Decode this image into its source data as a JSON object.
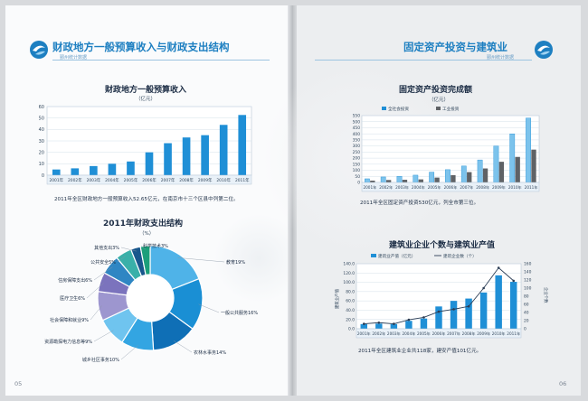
{
  "left": {
    "title": "财政地方一般预算收入与财政支出结构",
    "subtitle": "鄞州统计数据",
    "page_number": "05",
    "budget_chart": {
      "title": "财政地方一般预算收入",
      "unit": "（亿元）",
      "caption": "2011年全区财政地方一般预算收入52.65亿元，在南京市十三个区县中列第二位。"
    },
    "expenditure_chart": {
      "title": "2011年财政支出结构",
      "unit": "（%）"
    }
  },
  "right": {
    "title": "固定资产投资与建筑业",
    "subtitle": "鄞州统计数据",
    "page_number": "06",
    "investment_chart": {
      "title": "固定资产投资完成额",
      "unit": "（亿元）",
      "caption": "2011年全区固定资产投资530亿元，列全市第三位。"
    },
    "construction_chart": {
      "title": "建筑业企业个数与建筑业产值",
      "caption": "2011年全区建筑业企业共118家，建安产值101亿元。"
    }
  },
  "colors": {
    "accent": "#1d7fc1",
    "bar_blue": "#1f8fd6",
    "bar_light": "#7cc3ec",
    "bar_gray": "#5f6266",
    "line_dark": "#2b3d55"
  },
  "chart_data": [
    {
      "type": "bar",
      "title": "财政地方一般预算收入",
      "ylabel": "（亿元）",
      "categories": [
        "2001年",
        "2002年",
        "2003年",
        "2004年",
        "2005年",
        "2006年",
        "2007年",
        "2008年",
        "2009年",
        "2010年",
        "2011年"
      ],
      "values": [
        5,
        6,
        8,
        10,
        12,
        20,
        28,
        33,
        35,
        44,
        52.65
      ],
      "ylim": [
        0,
        60
      ],
      "yticks": [
        0,
        10,
        20,
        30,
        40,
        50,
        60
      ],
      "grid": true
    },
    {
      "type": "pie",
      "title": "2011年财政支出结构",
      "unit": "（%）",
      "slices": [
        {
          "label": "教育19%",
          "value": 19,
          "color": "#4fb3e8"
        },
        {
          "label": "一般公共服务16%",
          "value": 16,
          "color": "#1a8fd4"
        },
        {
          "label": "农林水事务14%",
          "value": 14,
          "color": "#0f6fb6"
        },
        {
          "label": "城乡社区事务10%",
          "value": 10,
          "color": "#33a5e2"
        },
        {
          "label": "资源勘探电力信息等9%",
          "value": 9,
          "color": "#6fc4ef"
        },
        {
          "label": "社会保障和就业9%",
          "value": 9,
          "color": "#9d96cf"
        },
        {
          "label": "医疗卫生6%",
          "value": 6,
          "color": "#7b73bd"
        },
        {
          "label": "住房保障支出6%",
          "value": 6,
          "color": "#2f86c3"
        },
        {
          "label": "公共安全5%",
          "value": 5,
          "color": "#3ab0a9"
        },
        {
          "label": "其他支出3%",
          "value": 3,
          "color": "#19578c"
        },
        {
          "label": "科学技术3%",
          "value": 3,
          "color": "#1c9f7a"
        }
      ]
    },
    {
      "type": "bar",
      "title": "固定资产投资完成额",
      "ylabel": "（亿元）",
      "categories": [
        "2001年",
        "2002年",
        "2003年",
        "2004年",
        "2005年",
        "2006年",
        "2007年",
        "2008年",
        "2009年",
        "2010年",
        "2011年"
      ],
      "series": [
        {
          "name": "全社会投资",
          "values": [
            30,
            45,
            50,
            60,
            85,
            105,
            135,
            185,
            300,
            400,
            530
          ]
        },
        {
          "name": "工业投资",
          "values": [
            15,
            20,
            22,
            25,
            40,
            60,
            85,
            115,
            170,
            210,
            270
          ]
        }
      ],
      "ylim": [
        0,
        550
      ],
      "yticks": [
        0,
        50,
        100,
        150,
        200,
        250,
        300,
        350,
        400,
        450,
        500,
        550
      ],
      "grid": true
    },
    {
      "type": "bar",
      "title": "建筑业企业个数与建筑业产值",
      "categories": [
        "2001年",
        "2002年",
        "2003年",
        "2004年",
        "2005年",
        "2006年",
        "2007年",
        "2008年",
        "2009年",
        "2010年",
        "2011年"
      ],
      "series": [
        {
          "name": "建筑业产值（亿元）",
          "type": "bar",
          "axis": "left",
          "values": [
            10,
            11,
            10,
            17,
            22,
            48,
            60,
            65,
            78,
            115,
            101
          ]
        },
        {
          "name": "建筑企业数（个）",
          "type": "line",
          "axis": "right",
          "values": [
            12,
            15,
            12,
            22,
            28,
            42,
            48,
            55,
            100,
            150,
            118
          ]
        }
      ],
      "ylabel_left": "建筑业产值",
      "ylabel_right": "企业个数",
      "ylim_left": [
        0,
        140
      ],
      "yticks_left": [
        "0.0",
        "20.0",
        "40.0",
        "60.0",
        "80.0",
        "100.0",
        "120.0",
        "140.0"
      ],
      "ylim_right": [
        0,
        160
      ],
      "yticks_right": [
        "0",
        "20",
        "40",
        "60",
        "80",
        "100",
        "120",
        "140",
        "160"
      ],
      "grid": true
    }
  ]
}
